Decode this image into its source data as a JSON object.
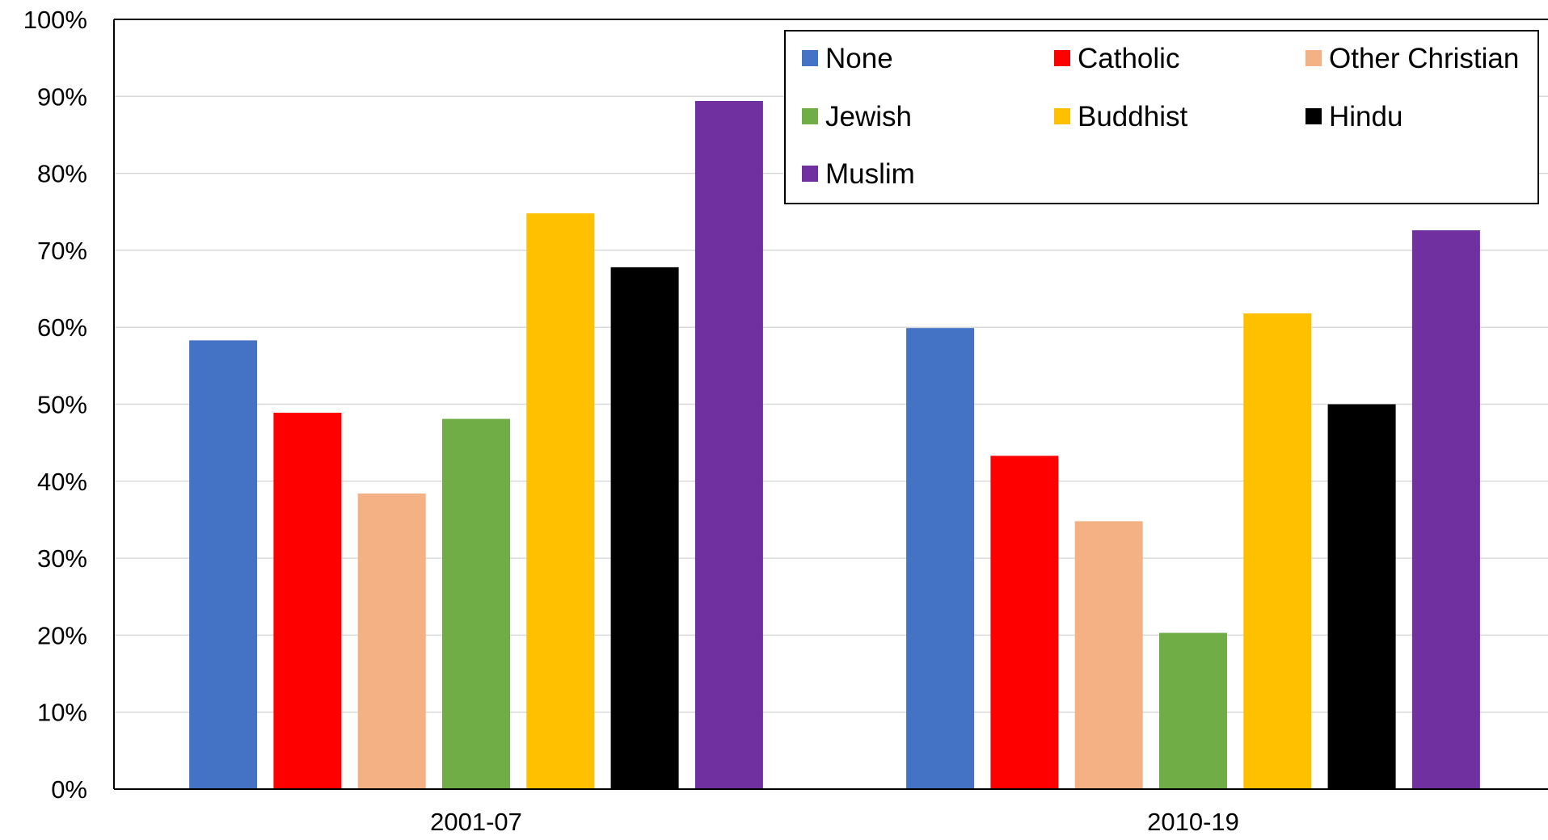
{
  "chart_data": {
    "type": "bar",
    "categories": [
      "2001-07",
      "2010-19"
    ],
    "series": [
      {
        "name": "None",
        "color": "#4472C4",
        "values": [
          58.3,
          59.9
        ]
      },
      {
        "name": "Catholic",
        "color": "#FF0000",
        "values": [
          48.9,
          43.3
        ]
      },
      {
        "name": "Other Christian",
        "color": "#F4B183",
        "values": [
          38.4,
          34.8
        ]
      },
      {
        "name": "Jewish",
        "color": "#70AD47",
        "values": [
          48.1,
          20.3
        ]
      },
      {
        "name": "Buddhist",
        "color": "#FFC000",
        "values": [
          74.8,
          61.8
        ]
      },
      {
        "name": "Hindu",
        "color": "#000000",
        "values": [
          67.8,
          50.0
        ]
      },
      {
        "name": "Muslim",
        "color": "#7030A0",
        "values": [
          89.4,
          72.6
        ]
      }
    ],
    "y_ticks": [
      "0%",
      "10%",
      "20%",
      "30%",
      "40%",
      "50%",
      "60%",
      "70%",
      "80%",
      "90%",
      "100%"
    ],
    "ylim": [
      0,
      100
    ],
    "grid": true,
    "legend_position": "top-right",
    "title": "",
    "xlabel": "",
    "ylabel": ""
  }
}
